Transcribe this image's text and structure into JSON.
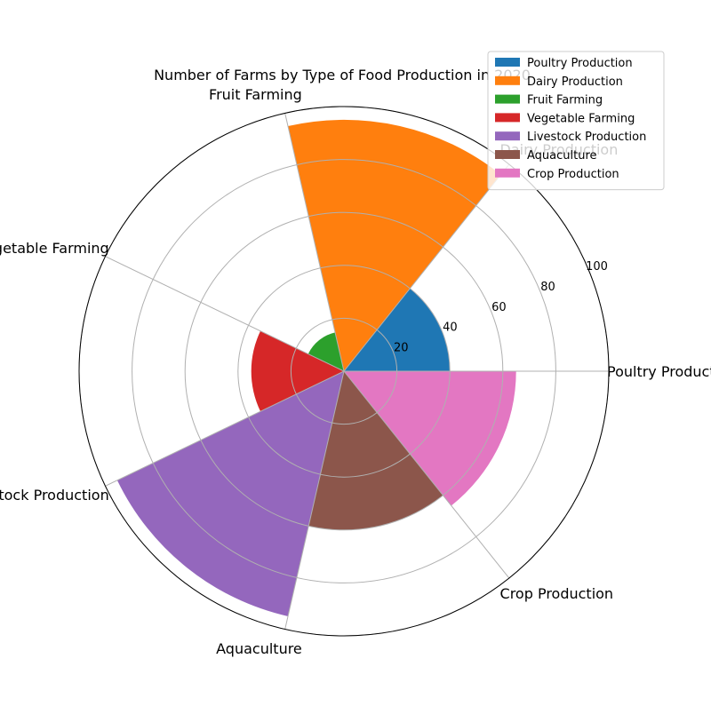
{
  "chart_data": {
    "type": "polar-bar",
    "title": "Number of Farms by Type of Food Production in 2020",
    "categories": [
      "Poultry Production",
      "Dairy Production",
      "Fruit Farming",
      "Vegetable Farming",
      "Livestock Production",
      "Aquaculture",
      "Crop Production"
    ],
    "values": [
      40,
      95,
      15,
      35,
      95,
      60,
      65
    ],
    "colors": [
      "#1f77b4",
      "#ff7f0e",
      "#2ca02c",
      "#d62728",
      "#9467bd",
      "#8c564b",
      "#e377c2"
    ],
    "r_ticks": [
      20,
      40,
      60,
      80,
      100
    ],
    "rlim": [
      0,
      100
    ],
    "grid": true,
    "legend": {
      "position": "top-right",
      "entries": [
        "Poultry Production",
        "Dairy Production",
        "Fruit Farming",
        "Vegetable Farming",
        "Livestock Production",
        "Aquaculture",
        "Crop Production"
      ]
    }
  }
}
